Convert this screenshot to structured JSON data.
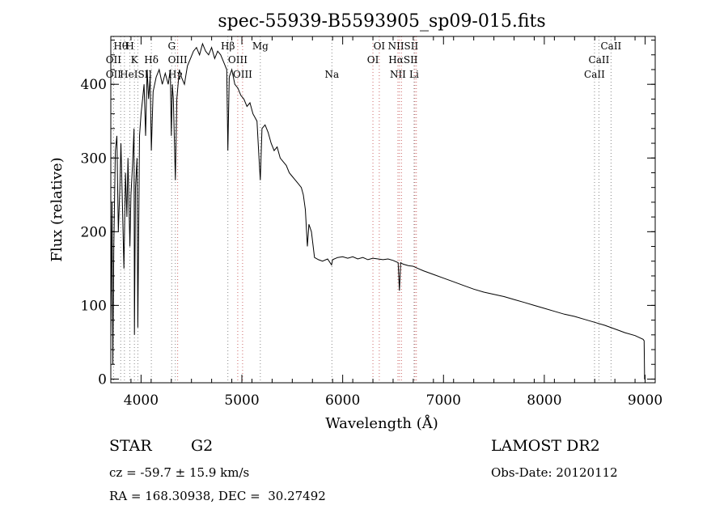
{
  "chart_data": {
    "type": "line",
    "title": "spec-55939-B5593905_sp09-015.fits",
    "xlabel": "Wavelength (Å)",
    "ylabel": "Flux (relative)",
    "xlim": [
      3700,
      9100
    ],
    "ylim": [
      -5,
      465
    ],
    "xticks": [
      4000,
      5000,
      6000,
      7000,
      8000,
      9000
    ],
    "yticks": [
      0,
      100,
      200,
      300,
      400
    ],
    "grid": false,
    "series": [
      {
        "points": [
          [
            3700,
            60
          ],
          [
            3712,
            240
          ],
          [
            3720,
            20
          ],
          [
            3730,
            180
          ],
          [
            3745,
            310
          ],
          [
            3760,
            330
          ],
          [
            3775,
            200
          ],
          [
            3790,
            260
          ],
          [
            3800,
            320
          ],
          [
            3815,
            240
          ],
          [
            3830,
            150
          ],
          [
            3845,
            280
          ],
          [
            3860,
            220
          ],
          [
            3870,
            300
          ],
          [
            3889,
            180
          ],
          [
            3900,
            250
          ],
          [
            3915,
            290
          ],
          [
            3930,
            340
          ],
          [
            3934,
            60
          ],
          [
            3945,
            260
          ],
          [
            3960,
            300
          ],
          [
            3968,
            70
          ],
          [
            3985,
            330
          ],
          [
            4000,
            360
          ],
          [
            4015,
            380
          ],
          [
            4030,
            400
          ],
          [
            4045,
            330
          ],
          [
            4060,
            420
          ],
          [
            4075,
            380
          ],
          [
            4090,
            410
          ],
          [
            4102,
            310
          ],
          [
            4120,
            390
          ],
          [
            4150,
            410
          ],
          [
            4180,
            420
          ],
          [
            4210,
            400
          ],
          [
            4240,
            415
          ],
          [
            4270,
            400
          ],
          [
            4290,
            420
          ],
          [
            4300,
            330
          ],
          [
            4310,
            400
          ],
          [
            4320,
            380
          ],
          [
            4340,
            270
          ],
          [
            4355,
            380
          ],
          [
            4380,
            420
          ],
          [
            4400,
            410
          ],
          [
            4430,
            400
          ],
          [
            4460,
            425
          ],
          [
            4490,
            435
          ],
          [
            4520,
            445
          ],
          [
            4550,
            450
          ],
          [
            4580,
            440
          ],
          [
            4610,
            455
          ],
          [
            4640,
            445
          ],
          [
            4670,
            440
          ],
          [
            4700,
            450
          ],
          [
            4730,
            435
          ],
          [
            4760,
            445
          ],
          [
            4790,
            440
          ],
          [
            4820,
            430
          ],
          [
            4850,
            420
          ],
          [
            4861,
            310
          ],
          [
            4875,
            410
          ],
          [
            4900,
            420
          ],
          [
            4930,
            400
          ],
          [
            4960,
            395
          ],
          [
            4990,
            385
          ],
          [
            5020,
            380
          ],
          [
            5050,
            370
          ],
          [
            5080,
            375
          ],
          [
            5110,
            360
          ],
          [
            5150,
            350
          ],
          [
            5170,
            300
          ],
          [
            5183,
            270
          ],
          [
            5200,
            340
          ],
          [
            5230,
            345
          ],
          [
            5260,
            335
          ],
          [
            5290,
            320
          ],
          [
            5320,
            310
          ],
          [
            5350,
            315
          ],
          [
            5380,
            300
          ],
          [
            5410,
            295
          ],
          [
            5440,
            290
          ],
          [
            5470,
            280
          ],
          [
            5500,
            275
          ],
          [
            5530,
            270
          ],
          [
            5560,
            265
          ],
          [
            5590,
            260
          ],
          [
            5610,
            250
          ],
          [
            5630,
            230
          ],
          [
            5650,
            180
          ],
          [
            5665,
            210
          ],
          [
            5690,
            200
          ],
          [
            5720,
            165
          ],
          [
            5760,
            162
          ],
          [
            5800,
            160
          ],
          [
            5850,
            163
          ],
          [
            5890,
            155
          ],
          [
            5900,
            162
          ],
          [
            5950,
            165
          ],
          [
            6000,
            166
          ],
          [
            6050,
            164
          ],
          [
            6100,
            166
          ],
          [
            6150,
            163
          ],
          [
            6200,
            165
          ],
          [
            6250,
            162
          ],
          [
            6300,
            164
          ],
          [
            6350,
            163
          ],
          [
            6400,
            162
          ],
          [
            6450,
            163
          ],
          [
            6500,
            161
          ],
          [
            6550,
            158
          ],
          [
            6563,
            120
          ],
          [
            6575,
            158
          ],
          [
            6600,
            156
          ],
          [
            6650,
            154
          ],
          [
            6700,
            153
          ],
          [
            6750,
            150
          ],
          [
            6800,
            147
          ],
          [
            6900,
            142
          ],
          [
            7000,
            137
          ],
          [
            7100,
            132
          ],
          [
            7200,
            127
          ],
          [
            7300,
            122
          ],
          [
            7400,
            118
          ],
          [
            7500,
            115
          ],
          [
            7600,
            112
          ],
          [
            7700,
            108
          ],
          [
            7800,
            104
          ],
          [
            7900,
            100
          ],
          [
            8000,
            96
          ],
          [
            8100,
            92
          ],
          [
            8200,
            88
          ],
          [
            8300,
            85
          ],
          [
            8400,
            81
          ],
          [
            8500,
            77
          ],
          [
            8600,
            73
          ],
          [
            8700,
            68
          ],
          [
            8800,
            63
          ],
          [
            8900,
            59
          ],
          [
            8980,
            54
          ],
          [
            8990,
            52
          ],
          [
            8995,
            0
          ],
          [
            9000,
            0
          ]
        ]
      }
    ],
    "line_markers": [
      {
        "label": "Hθ",
        "x": 3798,
        "row": 0
      },
      {
        "label": "H",
        "x": 3889,
        "row": 0
      },
      {
        "label": "G",
        "x": 4304,
        "row": 0
      },
      {
        "label": "Hβ",
        "x": 4861,
        "row": 0
      },
      {
        "label": "Mg",
        "x": 5183,
        "row": 0
      },
      {
        "label": "NIISII",
        "x": 6600,
        "row": 0
      },
      {
        "label": "CaII",
        "x": 8662,
        "row": 0
      },
      {
        "label": "OII",
        "x": 3727,
        "row": 1
      },
      {
        "label": "K",
        "x": 3934,
        "row": 1
      },
      {
        "label": "Hδ",
        "x": 4102,
        "row": 1
      },
      {
        "label": "OIII",
        "x": 4363,
        "row": 1
      },
      {
        "label": "OIII",
        "x": 4959,
        "row": 1
      },
      {
        "label": "OI",
        "x": 6300,
        "row": 1
      },
      {
        "label": "OI",
        "x": 6363,
        "row": 0
      },
      {
        "label": "HαSII",
        "x": 6600,
        "row": 1
      },
      {
        "label": "CaII",
        "x": 8542,
        "row": 1
      },
      {
        "label": "OII",
        "x": 3727,
        "row": 2
      },
      {
        "label": "HeISII",
        "x": 3950,
        "row": 2
      },
      {
        "label": "Hγ",
        "x": 4340,
        "row": 2
      },
      {
        "label": "OIII",
        "x": 5007,
        "row": 2
      },
      {
        "label": "Na",
        "x": 5893,
        "row": 2
      },
      {
        "label": "NII",
        "x": 6548,
        "row": 2
      },
      {
        "label": "Li",
        "x": 6708,
        "row": 2
      },
      {
        "label": "CaII",
        "x": 8498,
        "row": 2
      }
    ],
    "marker_lines": [
      {
        "x": 3727,
        "color": "#888888"
      },
      {
        "x": 3798,
        "color": "#888888"
      },
      {
        "x": 3835,
        "color": "#888888"
      },
      {
        "x": 3889,
        "color": "#888888"
      },
      {
        "x": 3934,
        "color": "#888888"
      },
      {
        "x": 3968,
        "color": "#888888"
      },
      {
        "x": 4102,
        "color": "#888888"
      },
      {
        "x": 4304,
        "color": "#888888"
      },
      {
        "x": 4340,
        "color": "#888888"
      },
      {
        "x": 4363,
        "color": "#cc6666"
      },
      {
        "x": 4861,
        "color": "#888888"
      },
      {
        "x": 4959,
        "color": "#cc6666"
      },
      {
        "x": 5007,
        "color": "#cc6666"
      },
      {
        "x": 5183,
        "color": "#888888"
      },
      {
        "x": 5893,
        "color": "#888888"
      },
      {
        "x": 6300,
        "color": "#cc6666"
      },
      {
        "x": 6363,
        "color": "#cc6666"
      },
      {
        "x": 6548,
        "color": "#cc6666"
      },
      {
        "x": 6563,
        "color": "#cc6666"
      },
      {
        "x": 6583,
        "color": "#cc6666"
      },
      {
        "x": 6708,
        "color": "#888888"
      },
      {
        "x": 6716,
        "color": "#cc6666"
      },
      {
        "x": 6731,
        "color": "#cc6666"
      },
      {
        "x": 8498,
        "color": "#888888"
      },
      {
        "x": 8542,
        "color": "#888888"
      },
      {
        "x": 8662,
        "color": "#888888"
      }
    ]
  },
  "info": {
    "object_class": "STAR",
    "subclass": "G2",
    "survey": "LAMOST DR2",
    "redshift_line": "cz = -59.7 ± 15.9 km/s",
    "obs_date_line": "Obs-Date: 20120112",
    "coords_line": "RA = 168.30938, DEC =  30.27492"
  }
}
